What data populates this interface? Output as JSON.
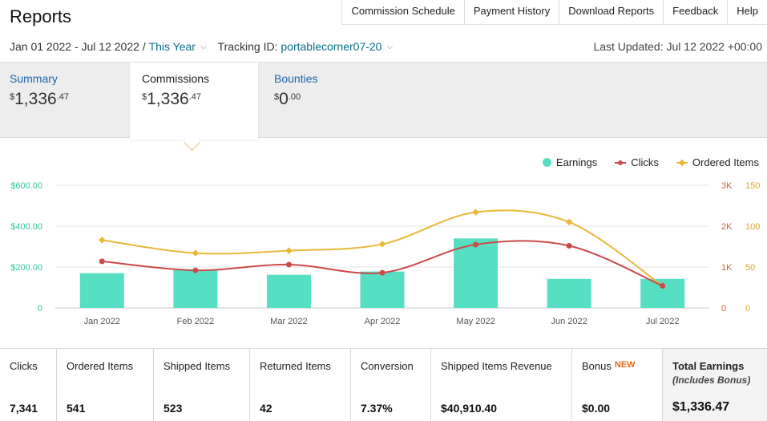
{
  "page": {
    "title": "Reports"
  },
  "nav": [
    "Commission Schedule",
    "Payment History",
    "Download Reports",
    "Feedback",
    "Help"
  ],
  "filters": {
    "date_range": "Jan 01 2022 - Jul 12 2022",
    "separator": "/",
    "period": "This Year",
    "tracking_label": "Tracking ID:",
    "tracking_id": "portablecorner07-20"
  },
  "last_updated": "Last Updated: Jul 12 2022 +00:00",
  "tabs": [
    {
      "label": "Summary",
      "currency": "$",
      "whole": "1,336",
      "cents": ".47"
    },
    {
      "label": "Commissions",
      "currency": "$",
      "whole": "1,336",
      "cents": ".47"
    },
    {
      "label": "Bounties",
      "currency": "$",
      "whole": "0",
      "cents": ".00"
    }
  ],
  "colors": {
    "earnings": "#56dfc2",
    "clicks": "#cc4a4a",
    "items": "#e8b838",
    "link": "#1b66b0"
  },
  "legend": {
    "earnings": "Earnings",
    "clicks": "Clicks",
    "items": "Ordered Items"
  },
  "chart_data": {
    "type": "bar",
    "categories": [
      "Jan 2022",
      "Feb 2022",
      "Mar 2022",
      "Apr 2022",
      "May 2022",
      "Jun 2022",
      "Jul 2022"
    ],
    "series": [
      {
        "name": "Earnings",
        "type": "bar",
        "axis": "left",
        "values": [
          170,
          185,
          162,
          178,
          340,
          142,
          142
        ]
      },
      {
        "name": "Clicks",
        "type": "line",
        "axis": "right1",
        "values": [
          1140,
          920,
          1060,
          860,
          1550,
          1520,
          540
        ]
      },
      {
        "name": "Ordered Items",
        "type": "line",
        "axis": "right2",
        "values": [
          83,
          67,
          70,
          78,
          117,
          105,
          27
        ]
      }
    ],
    "left_axis": {
      "ticks": [
        "0",
        "$200.00",
        "$400.00",
        "$600.00"
      ],
      "range": [
        0,
        600
      ]
    },
    "right_axis_1": {
      "ticks": [
        "0",
        "1K",
        "2K",
        "3K"
      ],
      "range": [
        0,
        3000
      ]
    },
    "right_axis_2": {
      "ticks": [
        "0",
        "50",
        "100",
        "150"
      ],
      "range": [
        0,
        150
      ]
    },
    "grid": true,
    "legend_position": "top-right"
  },
  "stats": [
    {
      "label": "Clicks",
      "value": "7,341"
    },
    {
      "label": "Ordered Items",
      "value": "541"
    },
    {
      "label": "Shipped Items",
      "value": "523"
    },
    {
      "label": "Returned Items",
      "value": "42"
    },
    {
      "label": "Conversion",
      "value": "7.37%"
    },
    {
      "label": "Shipped Items Revenue",
      "value": "$40,910.40"
    },
    {
      "label": "Bonus",
      "badge": "NEW",
      "value": "$0.00"
    },
    {
      "label": "Total Earnings",
      "sub": "(Includes Bonus)",
      "value": "$1,336.47"
    }
  ]
}
